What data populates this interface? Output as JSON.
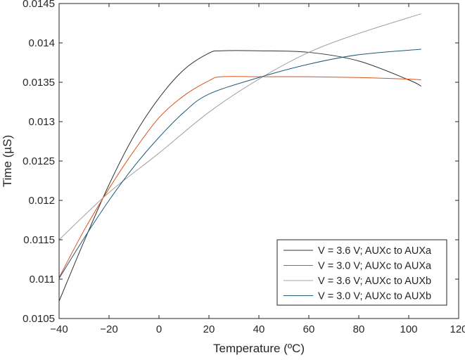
{
  "chart_data": {
    "type": "line",
    "title": "",
    "xlabel": "Temperature (ºC)",
    "ylabel": "Time (µS)",
    "xlim": [
      -40,
      120
    ],
    "ylim": [
      0.0105,
      0.0145
    ],
    "xticks": [
      "−40",
      "−20",
      "0",
      "20",
      "40",
      "60",
      "80",
      "100",
      "120"
    ],
    "xtick_values": [
      -40,
      -20,
      0,
      20,
      40,
      60,
      80,
      100,
      120
    ],
    "yticks": [
      "0.0105",
      "0.011",
      "0.0115",
      "0.012",
      "0.0125",
      "0.013",
      "0.0135",
      "0.014",
      "0.0145"
    ],
    "ytick_values": [
      0.0105,
      0.011,
      0.0115,
      0.012,
      0.0125,
      0.013,
      0.0135,
      0.014,
      0.0145
    ],
    "grid": false,
    "legend_position": "bottom-right",
    "series": [
      {
        "name": "V = 3.6 V; AUXc to AUXa",
        "color": "#333333",
        "x": [
          -40,
          -30,
          -20,
          -10,
          0,
          10,
          20,
          25,
          40,
          60,
          80,
          100,
          105
        ],
        "y": [
          0.01072,
          0.01148,
          0.0122,
          0.01282,
          0.0133,
          0.01366,
          0.01387,
          0.0139,
          0.0139,
          0.01388,
          0.01377,
          0.01353,
          0.01345
        ]
      },
      {
        "name": "V = 3.0 V; AUXc to AUXa",
        "color": "#d95319",
        "x": [
          -40,
          -30,
          -20,
          -10,
          0,
          10,
          20,
          25,
          40,
          60,
          80,
          100,
          105
        ],
        "y": [
          0.01102,
          0.01162,
          0.01215,
          0.01263,
          0.01305,
          0.01333,
          0.01352,
          0.01357,
          0.01357,
          0.01357,
          0.01356,
          0.01354,
          0.01353
        ]
      },
      {
        "name": "V = 3.6 V; AUXc to AUXb",
        "color": "#a0a0a0",
        "x": [
          -40,
          -20,
          0,
          20,
          40,
          60,
          80,
          105
        ],
        "y": [
          0.0115,
          0.0121,
          0.0126,
          0.01312,
          0.01354,
          0.01388,
          0.01412,
          0.01437
        ]
      },
      {
        "name": "V = 3.0 V; AUXc to AUXb",
        "color": "#1f5a78",
        "x": [
          -40,
          -30,
          -20,
          -10,
          0,
          10,
          20,
          40,
          60,
          80,
          105
        ],
        "y": [
          0.01101,
          0.01152,
          0.012,
          0.01243,
          0.0128,
          0.01312,
          0.01335,
          0.01356,
          0.01373,
          0.01385,
          0.01392
        ]
      }
    ]
  }
}
